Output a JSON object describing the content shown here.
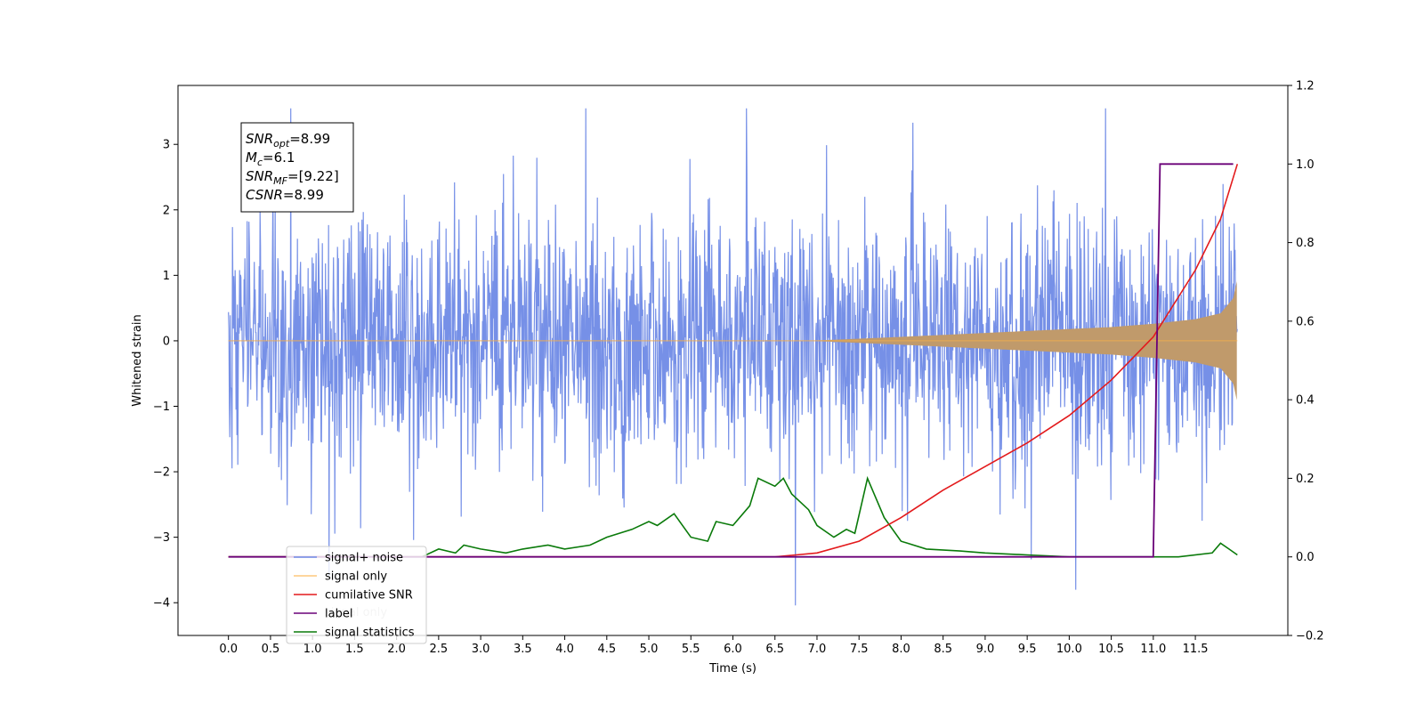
{
  "chart_data": {
    "type": "line",
    "xlabel": "Time (s)",
    "ylabel": "Whitened strain",
    "xlim": [
      -0.6,
      12.6
    ],
    "ylim": [
      -4.5,
      3.9
    ],
    "ylim_right": [
      -0.2,
      1.2
    ],
    "x_ticks": [
      "0.0",
      "0.5",
      "1.0",
      "1.5",
      "2.0",
      "2.5",
      "3.0",
      "3.5",
      "4.0",
      "4.5",
      "5.0",
      "5.5",
      "6.0",
      "6.5",
      "7.0",
      "7.5",
      "8.0",
      "8.5",
      "9.0",
      "9.5",
      "10.0",
      "10.5",
      "11.0",
      "11.5"
    ],
    "x_tick_values": [
      0,
      0.5,
      1,
      1.5,
      2,
      2.5,
      3,
      3.5,
      4,
      4.5,
      5,
      5.5,
      6,
      6.5,
      7,
      7.5,
      8,
      8.5,
      9,
      9.5,
      10,
      10.5,
      11,
      11.5
    ],
    "y_ticks": [
      "−4",
      "−3",
      "−2",
      "−1",
      "0",
      "1",
      "2",
      "3"
    ],
    "y_tick_values": [
      -4,
      -3,
      -2,
      -1,
      0,
      1,
      2,
      3
    ],
    "y_ticks_right": [
      "−0.2",
      "0.0",
      "0.2",
      "0.4",
      "0.6",
      "0.8",
      "1.0",
      "1.2"
    ],
    "y_tick_values_right": [
      -0.2,
      0,
      0.2,
      0.4,
      0.6,
      0.8,
      1.0,
      1.2
    ],
    "legend_position": "lower-left",
    "grid": false,
    "series": [
      {
        "name": "signal+ noise",
        "axis": "left",
        "color": "#6f8ae6",
        "kind": "noise",
        "x_range": [
          0,
          12
        ],
        "amplitude_sigma": 1.0,
        "typical_range": [
          -2.5,
          3.5
        ]
      },
      {
        "name": "signal only",
        "axis": "left",
        "color": "#fdb147",
        "kind": "chirp",
        "envelope": {
          "x": [
            0,
            7.0,
            8.0,
            9.0,
            10.0,
            10.5,
            11.0,
            11.5,
            11.8,
            11.95,
            12.0
          ],
          "y": [
            0.005,
            0.005,
            0.06,
            0.12,
            0.18,
            0.21,
            0.26,
            0.33,
            0.42,
            0.65,
            0.95
          ]
        }
      },
      {
        "name": "cumilative SNR",
        "axis": "right",
        "color": "#e31a1c",
        "x": [
          0,
          6.5,
          7.0,
          7.5,
          8.0,
          8.5,
          9.0,
          9.5,
          10.0,
          10.5,
          11.0,
          11.5,
          11.8,
          12.0
        ],
        "y": [
          0,
          0,
          0.01,
          0.04,
          0.1,
          0.17,
          0.23,
          0.29,
          0.36,
          0.45,
          0.56,
          0.73,
          0.86,
          1.0
        ]
      },
      {
        "name": "label",
        "axis": "right",
        "color": "#6a0078",
        "x": [
          0,
          11.0,
          11.08,
          11.95
        ],
        "y": [
          0,
          0,
          1,
          1
        ]
      },
      {
        "name": "signal statistics",
        "axis": "right",
        "color": "#0a7a0a",
        "x": [
          0,
          2.0,
          2.3,
          2.5,
          2.7,
          2.8,
          3.0,
          3.3,
          3.5,
          3.8,
          4.0,
          4.3,
          4.5,
          4.8,
          5.0,
          5.1,
          5.3,
          5.5,
          5.7,
          5.8,
          6.0,
          6.2,
          6.3,
          6.5,
          6.6,
          6.7,
          6.9,
          7.0,
          7.2,
          7.35,
          7.45,
          7.6,
          7.8,
          8.0,
          8.3,
          8.7,
          9.0,
          9.5,
          10.0,
          11.0,
          11.3,
          11.7,
          11.8,
          11.9,
          12.0
        ],
        "y": [
          0,
          0,
          0.0,
          0.02,
          0.01,
          0.03,
          0.02,
          0.01,
          0.02,
          0.03,
          0.02,
          0.03,
          0.05,
          0.07,
          0.09,
          0.08,
          0.11,
          0.05,
          0.04,
          0.09,
          0.08,
          0.13,
          0.2,
          0.18,
          0.2,
          0.16,
          0.12,
          0.08,
          0.05,
          0.07,
          0.06,
          0.2,
          0.1,
          0.04,
          0.02,
          0.015,
          0.01,
          0.005,
          0,
          0,
          0,
          0.01,
          0.035,
          0.02,
          0.005
        ]
      }
    ],
    "annotation": {
      "lines": [
        {
          "base": "SNR",
          "sub": "opt",
          "value": "=8.99"
        },
        {
          "base": "M",
          "sub": "c",
          "value": "=6.1"
        },
        {
          "base": "SNR",
          "sub": "MF",
          "value": "=[9.22]"
        },
        {
          "base": "CSNR",
          "sub": "",
          "value": "=8.99"
        }
      ]
    },
    "legend_overlap_text": "signal only"
  }
}
